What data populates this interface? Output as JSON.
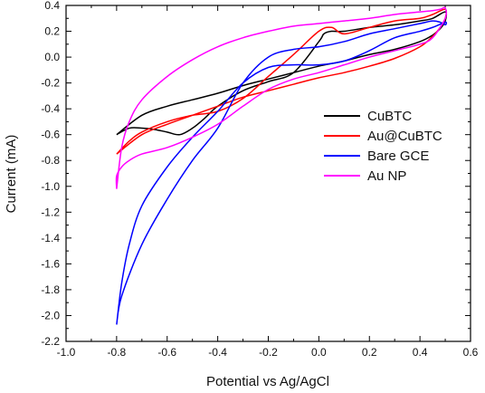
{
  "chart_data": {
    "type": "line",
    "title": "",
    "xlabel": "Potential vs Ag/AgCl",
    "ylabel": "Current (mA)",
    "xlim": [
      -1.0,
      0.6
    ],
    "ylim": [
      -2.2,
      0.4
    ],
    "xticks": [
      -1.0,
      -0.8,
      -0.6,
      -0.4,
      -0.2,
      0.0,
      0.2,
      0.4,
      0.6
    ],
    "xtick_labels": [
      "-1.0",
      "-0.8",
      "-0.6",
      "-0.4",
      "-0.2",
      "0.0",
      "0.2",
      "0.4",
      "0.6"
    ],
    "yticks": [
      0.4,
      0.2,
      0.0,
      -0.2,
      -0.4,
      -0.6,
      -0.8,
      -1.0,
      -1.2,
      -1.4,
      -1.6,
      -1.8,
      -2.0,
      -2.2
    ],
    "ytick_labels": [
      "0.4",
      "0.2",
      "0.0",
      "-0.2",
      "-0.4",
      "-0.6",
      "-0.8",
      "-1.0",
      "-1.2",
      "-1.4",
      "-1.6",
      "-1.8",
      "-2.0",
      "-2.2"
    ],
    "grid": false,
    "legend_position": "right",
    "series": [
      {
        "name": "CuBTC",
        "color": "#000000",
        "x": [
          -0.8,
          -0.75,
          -0.7,
          -0.65,
          -0.6,
          -0.55,
          -0.5,
          -0.45,
          -0.4,
          -0.3,
          -0.2,
          -0.1,
          0.0,
          0.02,
          0.05,
          0.1,
          0.2,
          0.3,
          0.4,
          0.45,
          0.5,
          0.5,
          0.48,
          0.45,
          0.4,
          0.3,
          0.2,
          0.1,
          0.0,
          -0.1,
          -0.2,
          -0.3,
          -0.4,
          -0.5,
          -0.6,
          -0.7,
          -0.8
        ],
        "y": [
          -0.6,
          -0.55,
          -0.55,
          -0.56,
          -0.58,
          -0.6,
          -0.55,
          -0.47,
          -0.38,
          -0.26,
          -0.19,
          -0.12,
          0.12,
          0.18,
          0.2,
          0.2,
          0.23,
          0.25,
          0.28,
          0.3,
          0.35,
          0.28,
          0.22,
          0.17,
          0.12,
          0.06,
          0.02,
          -0.03,
          -0.07,
          -0.12,
          -0.17,
          -0.22,
          -0.28,
          -0.33,
          -0.38,
          -0.45,
          -0.6
        ]
      },
      {
        "name": "Au@CuBTC",
        "color": "#ff0000",
        "x": [
          -0.8,
          -0.75,
          -0.7,
          -0.6,
          -0.5,
          -0.4,
          -0.3,
          -0.2,
          -0.1,
          0.0,
          0.05,
          0.1,
          0.2,
          0.3,
          0.4,
          0.45,
          0.5,
          0.5,
          0.48,
          0.45,
          0.4,
          0.3,
          0.2,
          0.1,
          0.0,
          -0.1,
          -0.2,
          -0.3,
          -0.4,
          -0.5,
          -0.6,
          -0.7,
          -0.8
        ],
        "y": [
          -0.75,
          -0.65,
          -0.58,
          -0.5,
          -0.45,
          -0.42,
          -0.32,
          -0.15,
          0.02,
          0.2,
          0.23,
          0.18,
          0.23,
          0.28,
          0.3,
          0.33,
          0.37,
          0.3,
          0.23,
          0.16,
          0.08,
          -0.01,
          -0.07,
          -0.12,
          -0.16,
          -0.21,
          -0.26,
          -0.31,
          -0.38,
          -0.45,
          -0.52,
          -0.6,
          -0.75
        ]
      },
      {
        "name": "Bare GCE",
        "color": "#0000ff",
        "x": [
          -0.8,
          -0.78,
          -0.75,
          -0.7,
          -0.6,
          -0.5,
          -0.4,
          -0.3,
          -0.2,
          -0.1,
          0.0,
          0.1,
          0.2,
          0.3,
          0.4,
          0.45,
          0.5,
          0.5,
          0.48,
          0.45,
          0.4,
          0.3,
          0.2,
          0.1,
          0.0,
          -0.1,
          -0.2,
          -0.3,
          -0.4,
          -0.5,
          -0.6,
          -0.7,
          -0.78,
          -0.8
        ],
        "y": [
          -2.07,
          -1.75,
          -1.45,
          -1.15,
          -0.85,
          -0.62,
          -0.42,
          -0.2,
          -0.08,
          -0.06,
          -0.06,
          -0.03,
          0.05,
          0.15,
          0.2,
          0.23,
          0.27,
          0.25,
          0.27,
          0.28,
          0.26,
          0.22,
          0.18,
          0.12,
          0.08,
          0.06,
          0.0,
          -0.2,
          -0.55,
          -0.8,
          -1.1,
          -1.45,
          -1.85,
          -2.07
        ]
      },
      {
        "name": "Au NP",
        "color": "#ff00ff",
        "x": [
          -0.8,
          -0.8,
          -0.78,
          -0.75,
          -0.7,
          -0.6,
          -0.5,
          -0.4,
          -0.3,
          -0.2,
          -0.1,
          0.0,
          0.1,
          0.2,
          0.3,
          0.4,
          0.45,
          0.5,
          0.5,
          0.48,
          0.45,
          0.4,
          0.3,
          0.2,
          0.1,
          0.0,
          -0.1,
          -0.2,
          -0.3,
          -0.4,
          -0.5,
          -0.6,
          -0.7,
          -0.75,
          -0.78,
          -0.8
        ],
        "y": [
          -1.02,
          -0.92,
          -0.85,
          -0.8,
          -0.75,
          -0.7,
          -0.62,
          -0.52,
          -0.38,
          -0.25,
          -0.17,
          -0.12,
          -0.06,
          0.0,
          0.05,
          0.1,
          0.15,
          0.3,
          0.38,
          0.37,
          0.36,
          0.35,
          0.33,
          0.3,
          0.28,
          0.26,
          0.24,
          0.2,
          0.15,
          0.08,
          -0.02,
          -0.15,
          -0.33,
          -0.5,
          -0.7,
          -1.02
        ]
      }
    ]
  }
}
